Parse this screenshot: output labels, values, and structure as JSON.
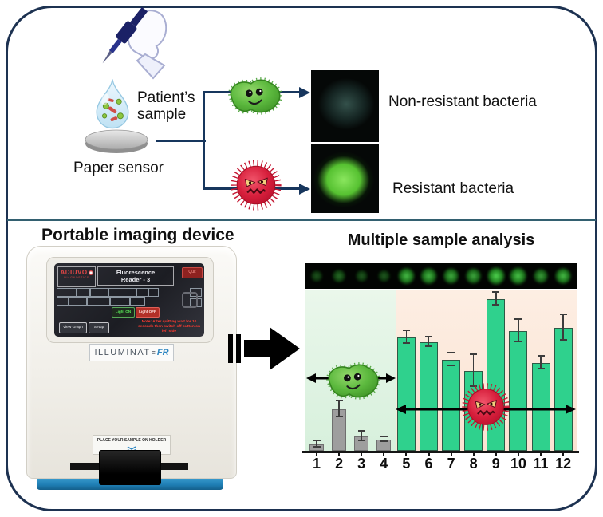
{
  "colors": {
    "outer_border": "#1d3251",
    "divider": "#336070",
    "flow_line": "#17365d",
    "bar_green": "#2fd18d",
    "bar_gray": "#9e9e9e",
    "chart_bg_nonresistant": "#ddf2e1",
    "chart_bg_resistant": "#fbe7d8",
    "device_base_blue": "#2f9ad0",
    "brand_red": "#c02828"
  },
  "top_section": {
    "patients_sample_label": "Patient’s sample",
    "paper_sensor_label": "Paper sensor",
    "non_resistant_label": "Non-resistant bacteria",
    "resistant_label": "Resistant bacteria"
  },
  "device_section": {
    "title": "Portable imaging device",
    "screen": {
      "brand": "ADIUVO",
      "brand_sub": "DIAGNOSTICS",
      "reader_line1": "Fluorescence",
      "reader_line2": "Reader - 3",
      "quit_label": "Quit",
      "light_on_label": "Light ON",
      "light_off_label": "Light OFF",
      "view_graph_label": "View Graph",
      "setup_label": "Setup",
      "warning_text": "Note: After quitting wait for 10 seconds then switch off button on left side"
    },
    "model_name": "ILLUMINAT",
    "model_mark": "≡",
    "model_suffix": "FR",
    "holder_label": "PLACE YOUR SAMPLE ON HOLDER"
  },
  "analysis_section": {
    "title": "Multiple sample analysis"
  },
  "chart_data": {
    "type": "bar",
    "title": "Multiple sample analysis",
    "categories": [
      "1",
      "2",
      "3",
      "4",
      "5",
      "6",
      "7",
      "8",
      "9",
      "10",
      "11",
      "12"
    ],
    "values": [
      4,
      26,
      9,
      7,
      71,
      68,
      57,
      50,
      95,
      75,
      55,
      77
    ],
    "errors": [
      2,
      5,
      3,
      1.5,
      4,
      3,
      4,
      10,
      4,
      7,
      4,
      8
    ],
    "bar_groups": [
      "gray",
      "gray",
      "gray",
      "gray",
      "green",
      "green",
      "green",
      "green",
      "green",
      "green",
      "green",
      "green"
    ],
    "spot_intensities": [
      0.18,
      0.32,
      0.2,
      0.22,
      0.85,
      0.8,
      0.75,
      0.72,
      1.0,
      0.9,
      0.65,
      0.85
    ],
    "regions": [
      {
        "label": "non-resistant bacteria samples",
        "from": 1,
        "to": 4,
        "bg": "#ddf2e1"
      },
      {
        "label": "resistant bacteria samples",
        "from": 5,
        "to": 12,
        "bg": "#fbe7d8"
      }
    ],
    "xlabel": "",
    "ylabel": "",
    "ylim": [
      0,
      100
    ],
    "grid": false,
    "legend": false
  }
}
